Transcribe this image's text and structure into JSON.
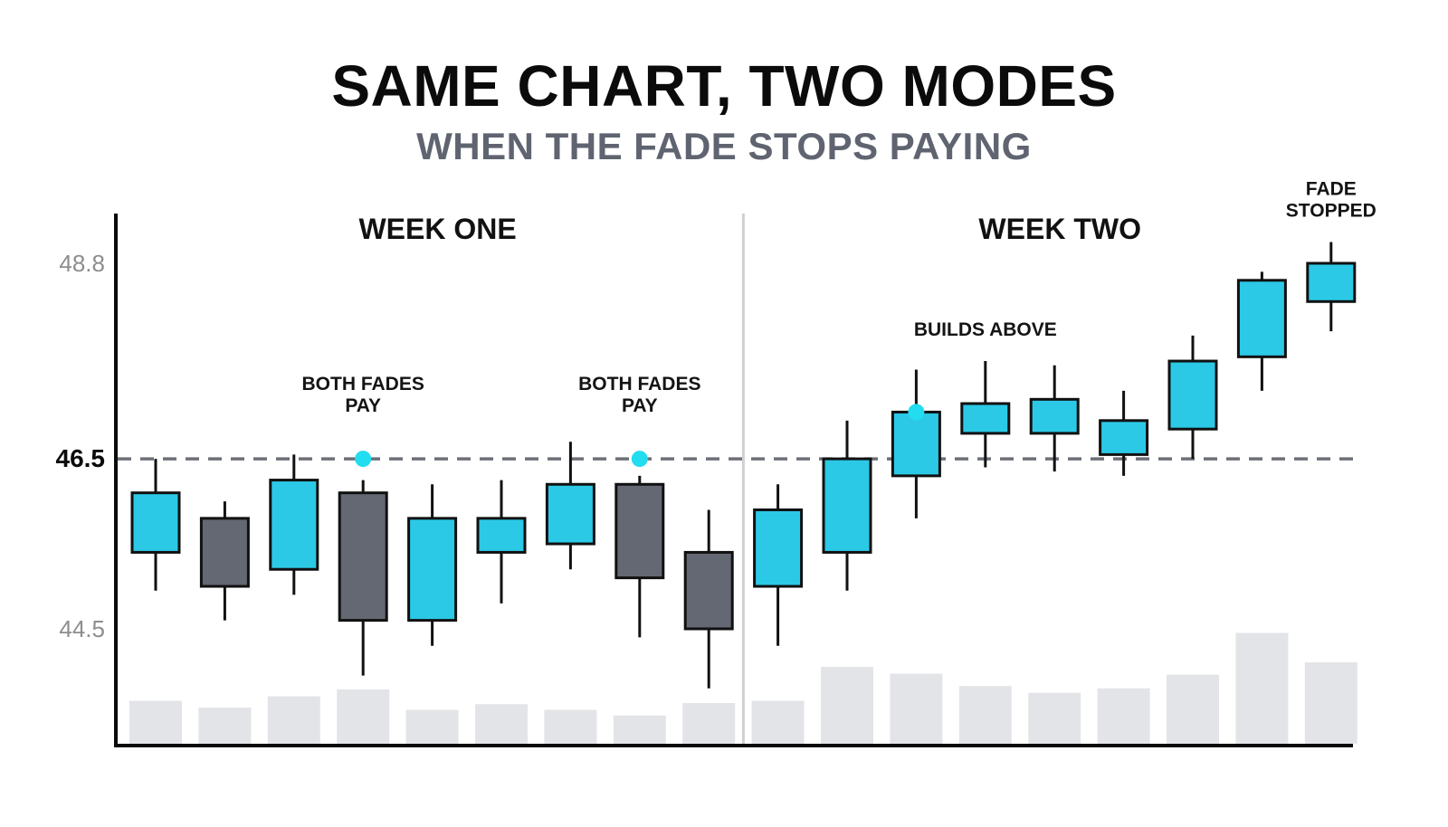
{
  "colors": {
    "up": "#2bc9e6",
    "down": "#636873",
    "outline": "#111111",
    "volume": "#e3e4e7",
    "dot": "#22dcf0",
    "level": "#6d7078",
    "divider": "#cfd0d3"
  },
  "chart_data": {
    "type": "candlestick",
    "title": "SAME CHART, TWO MODES",
    "subtitle": "WHEN THE FADE STOPS PAYING",
    "y_ticks": [
      {
        "value": 48.8,
        "label": "48.8",
        "bold": false
      },
      {
        "value": 46.5,
        "label": "46.5",
        "bold": true
      },
      {
        "value": 44.5,
        "label": "44.5",
        "bold": false
      }
    ],
    "ylim": [
      43.2,
      49.6
    ],
    "level_line": 46.5,
    "sections": [
      {
        "label": "WEEK ONE",
        "from": 0,
        "to": 8
      },
      {
        "label": "WEEK TWO",
        "from": 9,
        "to": 17
      }
    ],
    "candles": [
      {
        "o": 45.4,
        "h": 46.5,
        "l": 44.95,
        "c": 46.1,
        "v": 0.38
      },
      {
        "o": 45.8,
        "h": 46.0,
        "l": 44.6,
        "c": 45.0,
        "v": 0.32
      },
      {
        "o": 45.2,
        "h": 46.55,
        "l": 44.9,
        "c": 46.25,
        "v": 0.42
      },
      {
        "o": 46.1,
        "h": 46.25,
        "l": 43.95,
        "c": 44.6,
        "v": 0.48
      },
      {
        "o": 44.6,
        "h": 46.2,
        "l": 44.3,
        "c": 45.8,
        "v": 0.3
      },
      {
        "o": 45.4,
        "h": 46.25,
        "l": 44.8,
        "c": 45.8,
        "v": 0.35
      },
      {
        "o": 45.5,
        "h": 46.7,
        "l": 45.2,
        "c": 46.2,
        "v": 0.3
      },
      {
        "o": 46.2,
        "h": 46.3,
        "l": 44.4,
        "c": 45.1,
        "v": 0.25
      },
      {
        "o": 45.4,
        "h": 45.9,
        "l": 43.8,
        "c": 44.5,
        "v": 0.36
      },
      {
        "o": 45.0,
        "h": 46.2,
        "l": 44.3,
        "c": 45.9,
        "v": 0.38
      },
      {
        "o": 45.4,
        "h": 46.95,
        "l": 44.95,
        "c": 46.5,
        "v": 0.68
      },
      {
        "o": 46.3,
        "h": 47.55,
        "l": 45.8,
        "c": 47.05,
        "v": 0.62
      },
      {
        "o": 46.8,
        "h": 47.65,
        "l": 46.4,
        "c": 47.15,
        "v": 0.51
      },
      {
        "o": 46.8,
        "h": 47.6,
        "l": 46.35,
        "c": 47.2,
        "v": 0.45
      },
      {
        "o": 46.55,
        "h": 47.3,
        "l": 46.3,
        "c": 46.95,
        "v": 0.49
      },
      {
        "o": 46.85,
        "h": 47.95,
        "l": 46.5,
        "c": 47.65,
        "v": 0.61
      },
      {
        "o": 47.7,
        "h": 48.7,
        "l": 47.3,
        "c": 48.6,
        "v": 0.98
      },
      {
        "o": 48.35,
        "h": 49.05,
        "l": 48.0,
        "c": 48.8,
        "v": 0.72
      }
    ],
    "annotations": [
      {
        "lines": [
          "BOTH FADES",
          "PAY"
        ],
        "candle": 3,
        "dot": true,
        "dot_value": 46.5
      },
      {
        "lines": [
          "BOTH FADES",
          "PAY"
        ],
        "candle": 7,
        "dot": true,
        "dot_value": 46.5
      },
      {
        "lines": [
          "BUILDS ABOVE"
        ],
        "candle": 12,
        "dot": false
      },
      {
        "lines": [
          "FADE",
          "STOPPED"
        ],
        "candle": 17,
        "dot": false
      }
    ],
    "marker_dots": [
      {
        "candle": 11,
        "value": 47.05
      }
    ]
  }
}
